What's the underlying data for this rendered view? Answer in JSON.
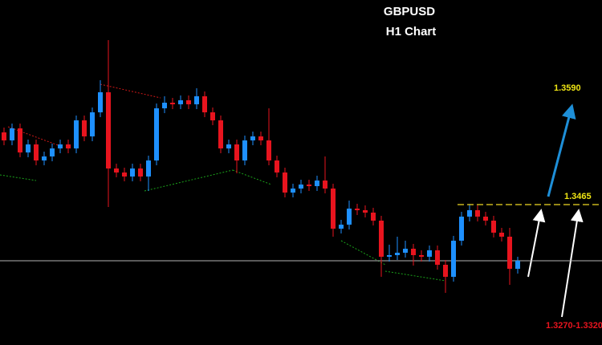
{
  "chart_data": {
    "type": "candlestick",
    "title": "GBPUSD",
    "subtitle": "H1 Chart",
    "ylim": [
      1.329,
      1.372
    ],
    "up_color": "#1e90ff",
    "down_color": "#e8141e",
    "reference_line": 1.3395,
    "level": {
      "value": 1.3465,
      "label": "1.3465"
    },
    "target": {
      "value": 1.359,
      "label": "1.3590"
    },
    "support_label": "1.3270-1.3320",
    "open": [
      1.3555,
      1.3545,
      1.356,
      1.353,
      1.354,
      1.352,
      1.3525,
      1.3535,
      1.354,
      1.3535,
      1.357,
      1.355,
      1.358,
      1.3605,
      1.351,
      1.3505,
      1.35,
      1.351,
      1.35,
      1.352,
      1.3585,
      1.3592,
      1.359,
      1.3595,
      1.359,
      1.36,
      1.358,
      1.357,
      1.3535,
      1.354,
      1.352,
      1.3545,
      1.355,
      1.3545,
      1.352,
      1.3505,
      1.348,
      1.3485,
      1.349,
      1.3488,
      1.3495,
      1.3485,
      1.3435,
      1.344,
      1.346,
      1.3458,
      1.3455,
      1.3445,
      1.34,
      1.3402,
      1.3405,
      1.341,
      1.3402,
      1.34,
      1.3408,
      1.339,
      1.3375,
      1.342,
      1.345,
      1.3458,
      1.345,
      1.3445,
      1.343,
      1.3425,
      1.3385
    ],
    "high": [
      1.3561,
      1.3566,
      1.3566,
      1.3546,
      1.3546,
      1.3531,
      1.3541,
      1.3546,
      1.3546,
      1.3576,
      1.3576,
      1.3586,
      1.362,
      1.367,
      1.3516,
      1.3511,
      1.3516,
      1.3516,
      1.3526,
      1.3591,
      1.36,
      1.3598,
      1.3601,
      1.3601,
      1.361,
      1.3606,
      1.3586,
      1.3576,
      1.3546,
      1.3546,
      1.3551,
      1.3556,
      1.3556,
      1.3585,
      1.3526,
      1.3511,
      1.3491,
      1.3496,
      1.3496,
      1.3501,
      1.3525,
      1.3491,
      1.3446,
      1.347,
      1.3466,
      1.3464,
      1.3461,
      1.3451,
      1.3415,
      1.3425,
      1.342,
      1.3416,
      1.3408,
      1.3414,
      1.3414,
      1.3396,
      1.3426,
      1.3456,
      1.3466,
      1.3464,
      1.3456,
      1.3451,
      1.3436,
      1.3436,
      1.34
    ],
    "low": [
      1.3539,
      1.3539,
      1.3524,
      1.3524,
      1.3514,
      1.3514,
      1.3519,
      1.3529,
      1.3529,
      1.3529,
      1.3544,
      1.3544,
      1.3574,
      1.3462,
      1.3499,
      1.3494,
      1.3494,
      1.3494,
      1.3482,
      1.3514,
      1.3579,
      1.3584,
      1.3584,
      1.3584,
      1.3584,
      1.3574,
      1.3564,
      1.3529,
      1.3529,
      1.3504,
      1.3514,
      1.3539,
      1.3539,
      1.3514,
      1.3499,
      1.3474,
      1.3474,
      1.3479,
      1.3482,
      1.3482,
      1.3479,
      1.3425,
      1.3429,
      1.3434,
      1.3452,
      1.3449,
      1.3439,
      1.3375,
      1.3394,
      1.3396,
      1.3399,
      1.3389,
      1.3394,
      1.3394,
      1.3384,
      1.3355,
      1.3369,
      1.3414,
      1.3444,
      1.3444,
      1.3439,
      1.3424,
      1.3419,
      1.3365,
      1.3379
    ],
    "close": [
      1.3545,
      1.356,
      1.353,
      1.354,
      1.352,
      1.3525,
      1.3535,
      1.354,
      1.3535,
      1.357,
      1.355,
      1.358,
      1.3605,
      1.351,
      1.3505,
      1.35,
      1.351,
      1.35,
      1.352,
      1.3585,
      1.3592,
      1.359,
      1.3595,
      1.359,
      1.36,
      1.358,
      1.357,
      1.3535,
      1.354,
      1.352,
      1.3545,
      1.355,
      1.3545,
      1.352,
      1.3505,
      1.348,
      1.3485,
      1.349,
      1.3488,
      1.3495,
      1.3485,
      1.3435,
      1.344,
      1.346,
      1.3458,
      1.3455,
      1.3445,
      1.34,
      1.3402,
      1.3405,
      1.341,
      1.3402,
      1.34,
      1.3408,
      1.339,
      1.3375,
      1.342,
      1.345,
      1.3458,
      1.345,
      1.3445,
      1.343,
      1.3425,
      1.3385,
      1.3395
    ]
  }
}
